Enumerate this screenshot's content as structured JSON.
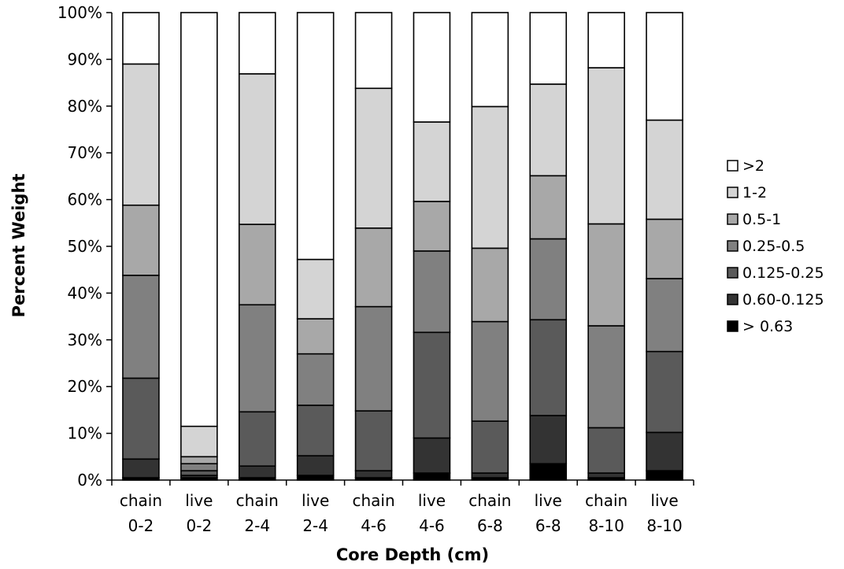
{
  "chart_data": {
    "type": "bar",
    "stacked": true,
    "percent": true,
    "xlabel": "Core Depth (cm)",
    "ylabel": "Percent Weight",
    "ylim": [
      0,
      100
    ],
    "y_ticks": [
      "0%",
      "10%",
      "20%",
      "30%",
      "40%",
      "50%",
      "60%",
      "70%",
      "80%",
      "90%",
      "100%"
    ],
    "categories": [
      {
        "line1": "chain",
        "line2": "0-2"
      },
      {
        "line1": "live",
        "line2": "0-2"
      },
      {
        "line1": "chain",
        "line2": "2-4"
      },
      {
        "line1": "live",
        "line2": "2-4"
      },
      {
        "line1": "chain",
        "line2": "4-6"
      },
      {
        "line1": "live",
        "line2": "4-6"
      },
      {
        "line1": "chain",
        "line2": "6-8"
      },
      {
        "line1": "live",
        "line2": "6-8"
      },
      {
        "line1": "chain",
        "line2": "8-10"
      },
      {
        "line1": "live",
        "line2": "8-10"
      }
    ],
    "series": [
      {
        "name": "> 0.63",
        "color": "#000000",
        "values": [
          0.5,
          0.5,
          0.5,
          1.0,
          0.5,
          1.5,
          0.5,
          3.5,
          0.5,
          2.0
        ]
      },
      {
        "name": "0.60-0.125",
        "color": "#333333",
        "values": [
          4.0,
          0.5,
          2.5,
          4.2,
          1.5,
          7.5,
          1.0,
          10.3,
          1.0,
          8.2
        ]
      },
      {
        "name": "0.125-0.25",
        "color": "#5a5a5a",
        "values": [
          17.3,
          1.0,
          11.6,
          10.8,
          12.8,
          22.6,
          11.1,
          20.5,
          9.7,
          17.3
        ]
      },
      {
        "name": "0.25-0.5",
        "color": "#808080",
        "values": [
          22.0,
          1.5,
          22.9,
          11.0,
          22.3,
          17.4,
          21.3,
          17.3,
          21.8,
          15.6
        ]
      },
      {
        "name": "0.5-1",
        "color": "#a8a8a8",
        "values": [
          15.0,
          1.5,
          17.2,
          7.5,
          16.8,
          10.6,
          15.7,
          13.5,
          21.8,
          12.7
        ]
      },
      {
        "name": "1-2",
        "color": "#d4d4d4",
        "values": [
          30.2,
          6.5,
          32.2,
          12.7,
          29.9,
          17.0,
          30.3,
          19.6,
          33.4,
          21.2
        ]
      },
      {
        "name": ">2",
        "color": "#ffffff",
        "values": [
          11.0,
          88.5,
          13.1,
          52.8,
          16.2,
          23.4,
          20.1,
          15.3,
          11.8,
          23.0
        ]
      }
    ],
    "legend_order": [
      ">2",
      "1-2",
      "0.5-1",
      "0.25-0.5",
      "0.125-0.25",
      "0.60-0.125",
      "> 0.63"
    ],
    "legend_position": "right",
    "grid": false
  }
}
